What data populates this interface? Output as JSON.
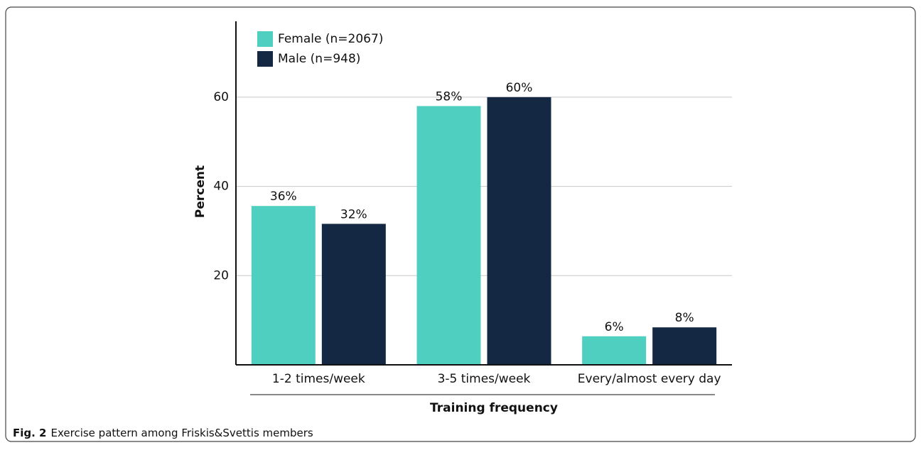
{
  "chart_data": {
    "type": "bar",
    "categories": [
      "1-2 times/week",
      "3-5 times/week",
      "Every/almost every day"
    ],
    "series": [
      {
        "name": "Female (n=2067)",
        "color": "#4ecfc0",
        "values": [
          35.6,
          58,
          6.4
        ],
        "value_labels": [
          "36%",
          "58%",
          "6%"
        ]
      },
      {
        "name": "Male (n=948)",
        "color": "#142844",
        "values": [
          31.6,
          60,
          8.4
        ],
        "value_labels": [
          "32%",
          "60%",
          "8%"
        ]
      }
    ],
    "xlabel": "Training frequency",
    "ylabel": "Percent",
    "ylim": [
      0,
      77
    ],
    "yticks": [
      20,
      40,
      60
    ],
    "grid": true,
    "legend": "upper left"
  },
  "caption": {
    "label": "Fig. 2",
    "text": "Exercise pattern among Friskis&Svettis members"
  }
}
